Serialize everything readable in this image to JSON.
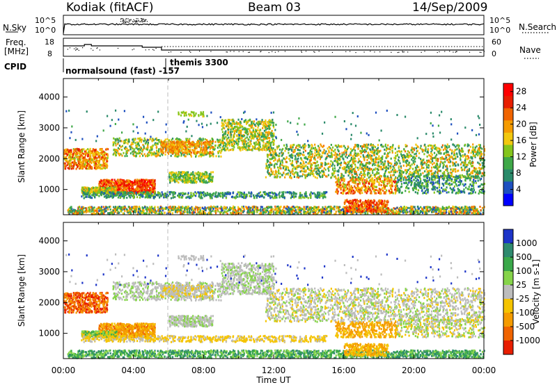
{
  "header": {
    "station": "Kodiak (fitACF)",
    "beam": "Beam 03",
    "date": "14/Sep/2009"
  },
  "noise_panel": {
    "left_label": "N.Sky",
    "right_label": "N.Search",
    "yticks_left": [
      "10^5",
      "10^0"
    ],
    "yticks_right": [
      "10^5",
      "10^0"
    ]
  },
  "freq_panel": {
    "left_label_1": "Freq.",
    "left_label_2": "[MHz]",
    "right_label": "Nave",
    "yticks_left": [
      "18",
      "8"
    ],
    "yticks_right": [
      "60",
      "0"
    ]
  },
  "cpid": {
    "label": "CPID",
    "mode_1": "normalsound (fast) -157",
    "mode_2": "themis 3300"
  },
  "chart_data": [
    {
      "type": "heatmap",
      "quantity": "Power",
      "xlabel": "Time UT",
      "ylabel": "Slant Range [km]",
      "xlim": [
        "00:00",
        "24:00"
      ],
      "ylim": [
        180,
        4600
      ],
      "yticks": [
        1000,
        2000,
        3000,
        4000
      ],
      "xticks": [
        "00:00",
        "04:00",
        "08:00",
        "12:00",
        "16:00",
        "20:00",
        "00:00"
      ],
      "colorbar": {
        "label": "Power [dB]",
        "ticks": [
          4,
          8,
          12,
          16,
          20,
          24,
          28
        ],
        "range": [
          0,
          30
        ],
        "colors": [
          "#0000ff",
          "#1d4fbf",
          "#2a8a6a",
          "#3fa848",
          "#84c51c",
          "#f2c80e",
          "#f59b00",
          "#f06400",
          "#e81e00",
          "#ff0000"
        ]
      }
    },
    {
      "type": "heatmap",
      "quantity": "Velocity",
      "xlabel": "Time UT",
      "ylabel": "Slant Range [km]",
      "xlim": [
        "00:00",
        "24:00"
      ],
      "ylim": [
        180,
        4600
      ],
      "yticks": [
        1000,
        2000,
        3000,
        4000
      ],
      "xticks": [
        "00:00",
        "04:00",
        "08:00",
        "12:00",
        "16:00",
        "20:00",
        "00:00"
      ],
      "colorbar": {
        "label": "Velocity [m s-1]",
        "ticks": [
          "1000",
          "500",
          "100",
          "25",
          "-25",
          "-100",
          "-500",
          "-1000"
        ],
        "colors": [
          "#1c34c8",
          "#2e8a6e",
          "#3aa84a",
          "#86d44a",
          "#bdbdbd",
          "#f5c400",
          "#f59b00",
          "#f06400",
          "#e81e00"
        ]
      }
    }
  ]
}
